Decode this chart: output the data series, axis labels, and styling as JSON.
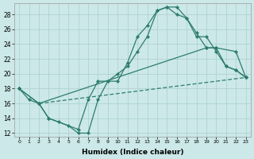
{
  "xlabel": "Humidex (Indice chaleur)",
  "bg_color": "#cce8e8",
  "line_color": "#2d7d6e",
  "grid_color": "#aacfcf",
  "xlim": [
    -0.5,
    23.5
  ],
  "ylim": [
    11.5,
    29.5
  ],
  "xticks": [
    0,
    1,
    2,
    3,
    4,
    5,
    6,
    7,
    8,
    9,
    10,
    11,
    12,
    13,
    14,
    15,
    16,
    17,
    18,
    19,
    20,
    21,
    22,
    23
  ],
  "yticks": [
    12,
    14,
    16,
    18,
    20,
    22,
    24,
    26,
    28
  ],
  "curve1_x": [
    0,
    1,
    2,
    3,
    4,
    5,
    6,
    7,
    8,
    9,
    10,
    11,
    12,
    13,
    14,
    15,
    16,
    17,
    18,
    19,
    20,
    21,
    22,
    23
  ],
  "curve1_y": [
    18,
    16.5,
    16,
    14,
    13.5,
    13,
    12,
    12,
    16.5,
    19,
    19,
    21.5,
    25,
    26.5,
    28.5,
    29,
    29,
    27.5,
    25,
    25,
    23,
    21,
    20.5,
    19.5
  ],
  "curve2_x": [
    0,
    2,
    3,
    6,
    7,
    8,
    9,
    10,
    11,
    12,
    13,
    14,
    15,
    16,
    17,
    18,
    19,
    20,
    21,
    22,
    23
  ],
  "curve2_y": [
    18,
    16,
    14,
    12.5,
    16.5,
    19,
    19,
    20,
    21,
    23,
    25,
    28.5,
    29,
    28,
    27.5,
    25.5,
    23.5,
    23.5,
    21,
    20.5,
    19.5
  ],
  "line3_x": [
    0,
    2,
    19,
    20,
    22,
    23
  ],
  "line3_y": [
    18,
    16,
    23.5,
    23.5,
    23,
    19.5
  ],
  "line4_x": [
    2,
    23
  ],
  "line4_y": [
    16,
    19.5
  ]
}
